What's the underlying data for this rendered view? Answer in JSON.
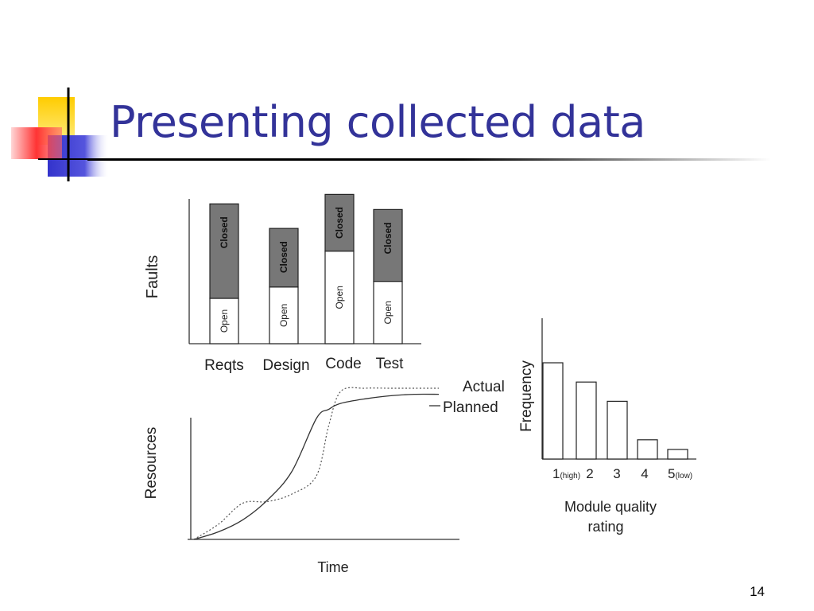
{
  "slide": {
    "title": "Presenting collected data",
    "page_number": "14"
  },
  "colors": {
    "title": "#333399",
    "logo_yellow": "#ffcc00",
    "logo_blue": "#3333cc",
    "logo_red": "#ff3333",
    "closed_fill": "#777777",
    "open_fill": "#ffffff"
  },
  "chart_data": [
    {
      "type": "bar",
      "stacked": true,
      "categories": [
        "Reqts",
        "Design",
        "Code",
        "Test"
      ],
      "series": [
        {
          "name": "Open",
          "values": [
            24,
            30,
            49,
            33
          ]
        },
        {
          "name": "Closed",
          "values": [
            50,
            31,
            30,
            38
          ]
        }
      ],
      "ylabel": "Faults",
      "xlabel": "",
      "ylim": [
        0,
        80
      ],
      "grid": false
    },
    {
      "type": "line",
      "x": [
        0,
        10,
        20,
        30,
        40,
        50,
        55,
        60,
        70,
        80,
        90,
        100
      ],
      "series": [
        {
          "name": "Actual",
          "values": [
            0,
            10,
            24,
            25,
            30,
            42,
            75,
            98,
            100,
            100,
            100,
            100
          ]
        },
        {
          "name": "Planned",
          "values": [
            0,
            5,
            13,
            26,
            45,
            80,
            86,
            90,
            93,
            95,
            96,
            96
          ]
        }
      ],
      "xlabel": "Time",
      "ylabel": "Resources",
      "ylim": [
        0,
        100
      ],
      "grid": false
    },
    {
      "type": "bar",
      "categories": [
        "1(high)",
        "2",
        "3",
        "4",
        "5(low)"
      ],
      "values": [
        100,
        80,
        60,
        20,
        10
      ],
      "xlabel": "Module quality rating",
      "ylabel": "Frequency",
      "ylim": [
        0,
        100
      ],
      "grid": false
    }
  ],
  "faults_chart": {
    "ylabel": "Faults",
    "bar_labels": {
      "open": "Open",
      "closed": "Closed"
    },
    "categories": [
      "Reqts",
      "Design",
      "Code",
      "Test"
    ]
  },
  "resources_chart": {
    "ylabel": "Resources",
    "xlabel": "Time",
    "actual_label": "Actual",
    "planned_label": "Planned"
  },
  "frequency_chart": {
    "ylabel": "Frequency",
    "tick_labels": [
      {
        "main": "1",
        "sub": "(high)"
      },
      {
        "main": "2",
        "sub": ""
      },
      {
        "main": "3",
        "sub": ""
      },
      {
        "main": "4",
        "sub": ""
      },
      {
        "main": "5",
        "sub": "(low)"
      }
    ],
    "xlabel_line1": "Module quality",
    "xlabel_line2": "rating"
  }
}
